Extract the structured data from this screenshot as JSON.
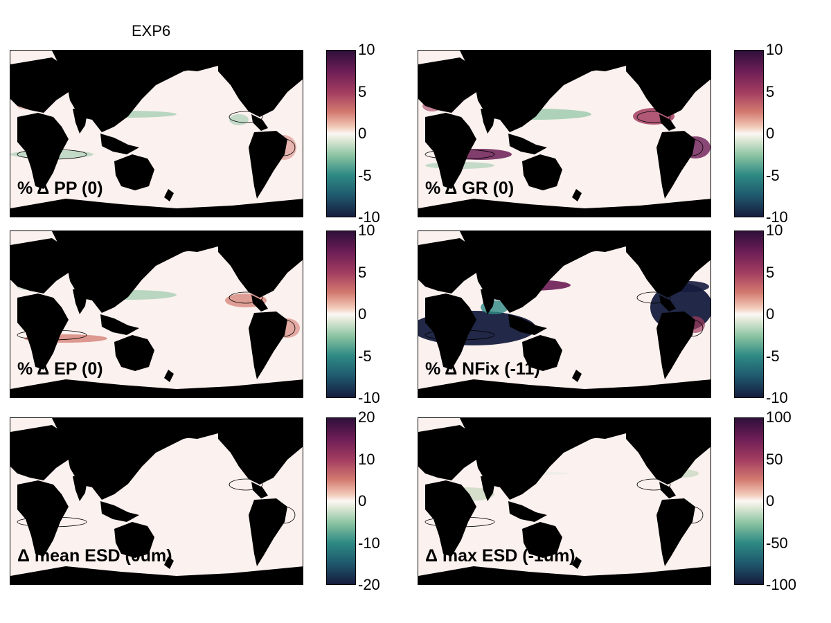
{
  "figure": {
    "title": "EXP6"
  },
  "colormap": {
    "top": "#2e0f3a",
    "mid_high": "#d37a6f",
    "center": "#fbf7f4",
    "mid_low": "#2e8a84",
    "bottom": "#161c3d",
    "land": "#000000",
    "ocean_zero": "#fbf1ee"
  },
  "panels": [
    {
      "label": "% Δ PP (0)",
      "pattern": "pp"
    },
    {
      "label": "% Δ GR (0)",
      "pattern": "gr"
    },
    {
      "label": "% Δ EP (0)",
      "pattern": "ep"
    },
    {
      "label": "% Δ NFix (-11)",
      "pattern": "nfix"
    },
    {
      "label": "Δ mean ESD (0um)",
      "pattern": "mesd"
    },
    {
      "label": "Δ max ESD (-1um)",
      "pattern": "xesd"
    }
  ],
  "colorbars": [
    {
      "ticks": [
        "10",
        "5",
        "0",
        "-5",
        "-10"
      ],
      "range": [
        -10,
        10
      ]
    },
    {
      "ticks": [
        "10",
        "5",
        "0",
        "-5",
        "-10"
      ],
      "range": [
        -10,
        10
      ]
    },
    {
      "ticks": [
        "10",
        "5",
        "0",
        "-5",
        "-10"
      ],
      "range": [
        -10,
        10
      ]
    },
    {
      "ticks": [
        "10",
        "5",
        "0",
        "-5",
        "-10"
      ],
      "range": [
        -10,
        10
      ]
    },
    {
      "ticks": [
        "20",
        "10",
        "0",
        "-10",
        "-20"
      ],
      "range": [
        -20,
        20
      ]
    },
    {
      "ticks": [
        "100",
        "50",
        "0",
        "-50",
        "-100"
      ],
      "range": [
        -100,
        100
      ]
    }
  ],
  "chart_data": [
    {
      "type": "heatmap",
      "title": "% Δ PP (0)",
      "colorbar_range": [
        -10,
        10
      ],
      "colorbar_ticks": [
        10,
        5,
        0,
        -5,
        -10
      ]
    },
    {
      "type": "heatmap",
      "title": "% Δ GR (0)",
      "colorbar_range": [
        -10,
        10
      ],
      "colorbar_ticks": [
        10,
        5,
        0,
        -5,
        -10
      ]
    },
    {
      "type": "heatmap",
      "title": "% Δ EP (0)",
      "colorbar_range": [
        -10,
        10
      ],
      "colorbar_ticks": [
        10,
        5,
        0,
        -5,
        -10
      ]
    },
    {
      "type": "heatmap",
      "title": "% Δ NFix (-11)",
      "colorbar_range": [
        -10,
        10
      ],
      "colorbar_ticks": [
        10,
        5,
        0,
        -5,
        -10
      ]
    },
    {
      "type": "heatmap",
      "title": "Δ mean ESD (0um)",
      "colorbar_range": [
        -20,
        20
      ],
      "colorbar_ticks": [
        20,
        10,
        0,
        -10,
        -20
      ]
    },
    {
      "type": "heatmap",
      "title": "Δ max ESD (-1um)",
      "colorbar_range": [
        -100,
        100
      ],
      "colorbar_ticks": [
        100,
        50,
        0,
        -50,
        -100
      ]
    }
  ]
}
